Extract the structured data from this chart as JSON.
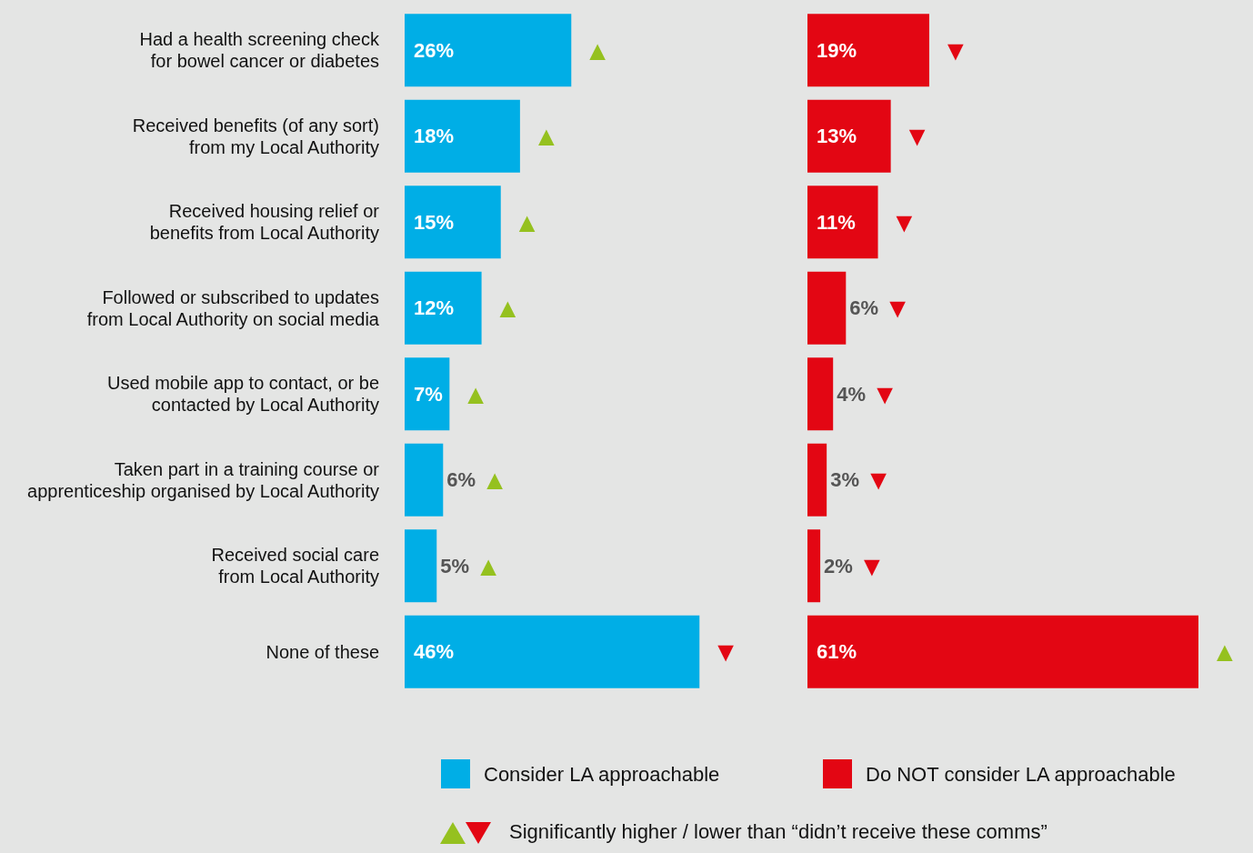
{
  "chart_data": [
    {
      "type": "bar",
      "orientation": "horizontal",
      "categories": [
        "Had a health screening check\nfor bowel cancer or diabetes",
        "Received benefits (of any sort)\nfrom my Local Authority",
        "Received housing relief or\nbenefits from Local Authority",
        "Followed or subscribed to updates\nfrom Local Authority on social media",
        "Used mobile app to contact, or be\ncontacted by Local Authority",
        "Taken part in a training course or\napprenticeship organised by Local Authority",
        "Received social care\nfrom Local Authority",
        "None of these"
      ],
      "series": [
        {
          "name": "Consider LA approachable",
          "color": "#00aee6",
          "values": [
            26,
            18,
            15,
            12,
            7,
            6,
            5,
            46
          ],
          "value_labels": [
            "26%",
            "18%",
            "15%",
            "12%",
            "7%",
            "6%",
            "5%",
            "46%"
          ]
        }
      ],
      "legend": "bottom",
      "tick_labels": "y",
      "annotations": [
        {
          "text": "▲",
          "x": 26,
          "y": "Had a health screening check\nfor bowel cancer or diabetes"
        },
        {
          "text": "▲",
          "x": 18,
          "y": "Received benefits (of any sort)\nfrom my Local Authority"
        },
        {
          "text": "▲",
          "x": 15,
          "y": "Received housing relief or\nbenefits from Local Authority"
        },
        {
          "text": "▲",
          "x": 12,
          "y": "Followed or subscribed to updates\nfrom Local Authority on social media"
        },
        {
          "text": "▲",
          "x": 7,
          "y": "Used mobile app to contact, or be\ncontacted by Local Authority"
        },
        {
          "text": "▲",
          "x": 6,
          "y": "Taken part in a training course or\napprenticeship organised by Local Authority"
        },
        {
          "text": "▲",
          "x": 5,
          "y": "Received social care\nfrom Local Authority"
        },
        {
          "text": "▼",
          "x": 46,
          "y": "None of these"
        },
        "Significantly higher / lower than “didn’t receive these comms”"
      ]
    },
    {
      "type": "bar",
      "orientation": "horizontal",
      "categories": [
        "Had a health screening check\nfor bowel cancer or diabetes",
        "Received benefits (of any sort)\nfrom my Local Authority",
        "Received housing relief or\nbenefits from Local Authority",
        "Followed or subscribed to updates\nfrom Local Authority on social media",
        "Used mobile app to contact, or be\ncontacted by Local Authority",
        "Taken part in a training course or\napprenticeship organised by Local Authority",
        "Received social care\nfrom Local Authority",
        "None of these"
      ],
      "series": [
        {
          "name": "Do NOT consider LA approachable",
          "color": "#e30613",
          "values": [
            19,
            13,
            11,
            6,
            4,
            3,
            2,
            61
          ],
          "value_labels": [
            "19%",
            "13%",
            "11%",
            "6%",
            "4%",
            "3%",
            "2%",
            "61%"
          ]
        }
      ],
      "legend": "bottom",
      "tick_labels": false,
      "annotations": [
        {
          "text": "▼",
          "x": 19,
          "y": "Had a health screening check\nfor bowel cancer or diabetes"
        },
        {
          "text": "▼",
          "x": 13,
          "y": "Received benefits (of any sort)\nfrom my Local Authority"
        },
        {
          "text": "▼",
          "x": 11,
          "y": "Received housing relief or\nbenefits from Local Authority"
        },
        {
          "text": "▼",
          "x": 6,
          "y": "Followed or subscribed to updates\nfrom Local Authority on social media"
        },
        {
          "text": "▼",
          "x": 4,
          "y": "Used mobile app to contact, or be\ncontacted by Local Authority"
        },
        {
          "text": "▼",
          "x": 3,
          "y": "Taken part in a training course or\napprenticeship organised by Local Authority"
        },
        {
          "text": "▼",
          "x": 2,
          "y": "Received social care\nfrom Local Authority"
        },
        {
          "text": "▲",
          "x": 61,
          "y": "None of these"
        }
      ]
    }
  ]
}
